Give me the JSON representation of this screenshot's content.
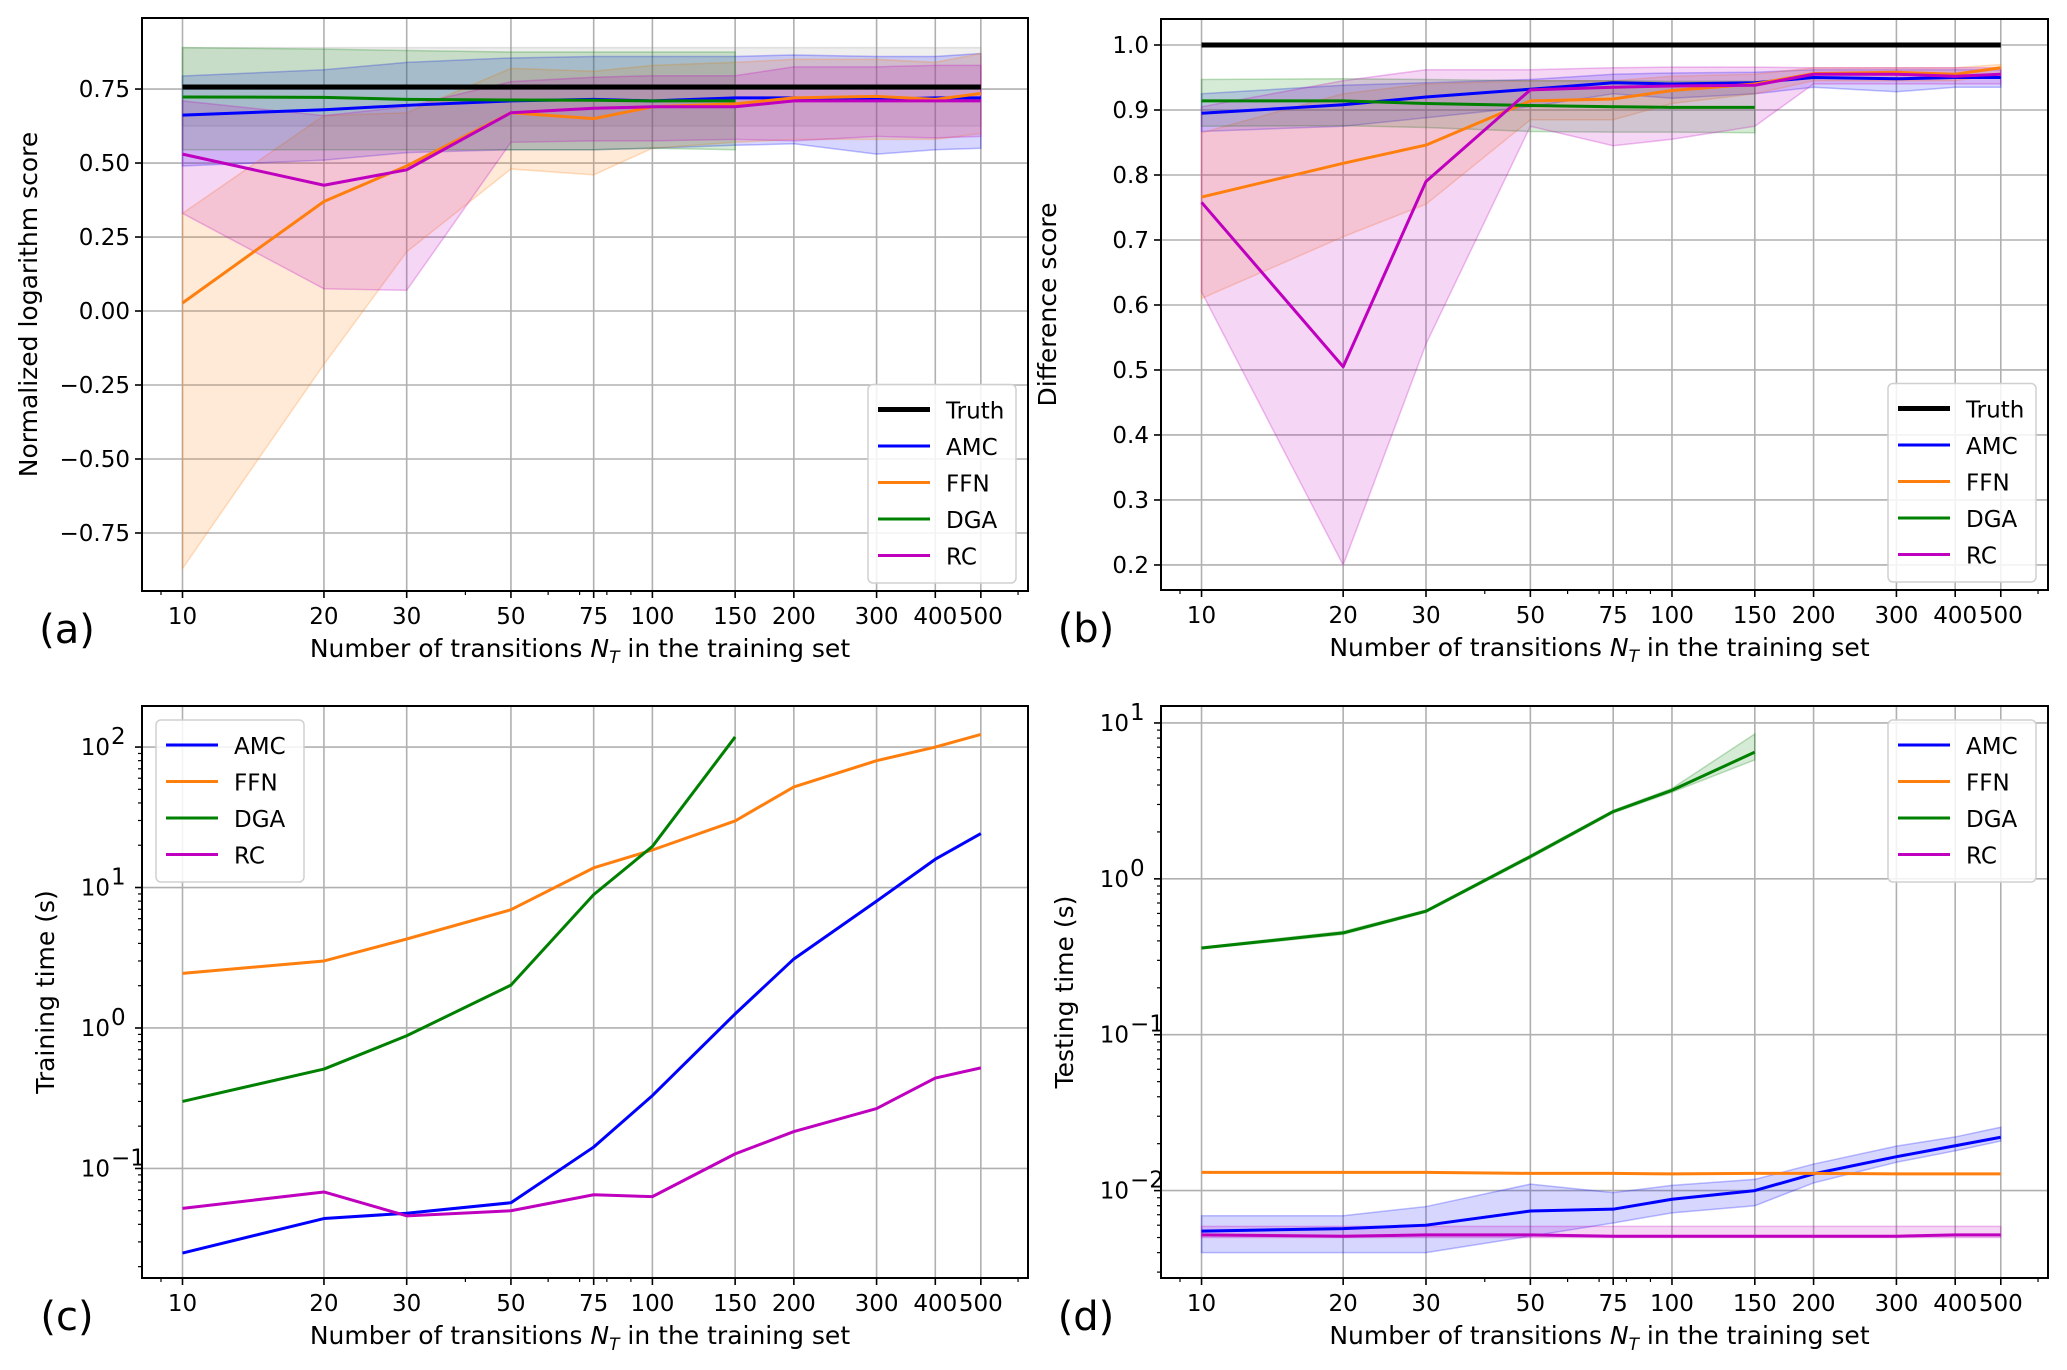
{
  "chart_data": [
    {
      "id": "a",
      "type": "line",
      "panel_label": "(a)",
      "title": "",
      "xlabel": "Number of transitions N_T in the training set",
      "xlabel_parts": [
        "Number of transitions ",
        "N",
        "T",
        " in the training set"
      ],
      "ylabel": "Normalized logarithm score",
      "xscale": "log",
      "yscale": "linear",
      "x": [
        10,
        20,
        30,
        50,
        75,
        100,
        150,
        200,
        300,
        400,
        500
      ],
      "xticks": [
        10,
        20,
        30,
        50,
        75,
        100,
        150,
        200,
        300,
        400,
        500
      ],
      "xtick_labels": [
        "10",
        "20",
        "30",
        "50",
        "75",
        "100",
        "150",
        "200",
        "300",
        "400",
        "500"
      ],
      "xlim": [
        8.2,
        630
      ],
      "ylim": [
        -0.946,
        0.99
      ],
      "yticks": [
        -0.75,
        -0.5,
        -0.25,
        0.0,
        0.25,
        0.5,
        0.75
      ],
      "ytick_labels": [
        "−0.75",
        "−0.50",
        "−0.25",
        "0.00",
        "0.25",
        "0.50",
        "0.75"
      ],
      "grid": true,
      "legend_position": "lower-right",
      "series": [
        {
          "name": "Truth",
          "color": "#000000",
          "width": "thick",
          "values": [
            0.757,
            0.757,
            0.757,
            0.757,
            0.757,
            0.757,
            0.757,
            0.757,
            0.757,
            0.757,
            0.757
          ],
          "band_upper": [
            0.89,
            0.89,
            0.89,
            0.89,
            0.89,
            0.89,
            0.89,
            0.89,
            0.89,
            0.89,
            0.89
          ],
          "band_lower": [
            0.625,
            0.625,
            0.625,
            0.625,
            0.625,
            0.625,
            0.625,
            0.625,
            0.625,
            0.625,
            0.625
          ],
          "band_color": "#999999"
        },
        {
          "name": "AMC",
          "color": "#0000ff",
          "values": [
            0.662,
            0.68,
            0.695,
            0.71,
            0.715,
            0.71,
            0.72,
            0.72,
            0.715,
            0.72,
            0.72
          ],
          "band_upper": [
            0.794,
            0.815,
            0.84,
            0.855,
            0.86,
            0.86,
            0.86,
            0.865,
            0.86,
            0.86,
            0.87
          ],
          "band_lower": [
            0.49,
            0.51,
            0.535,
            0.545,
            0.545,
            0.55,
            0.56,
            0.565,
            0.53,
            0.545,
            0.55
          ],
          "band_color": "#0000ff"
        },
        {
          "name": "FFN",
          "color": "#ff7f0e",
          "values": [
            0.027,
            0.37,
            0.49,
            0.67,
            0.65,
            0.69,
            0.7,
            0.72,
            0.725,
            0.715,
            0.735
          ],
          "band_upper": [
            0.33,
            0.66,
            0.67,
            0.82,
            0.81,
            0.83,
            0.84,
            0.85,
            0.85,
            0.84,
            0.87
          ],
          "band_lower": [
            -0.87,
            -0.18,
            0.2,
            0.48,
            0.46,
            0.55,
            0.57,
            0.58,
            0.58,
            0.58,
            0.6
          ],
          "band_color": "#ff7f0e"
        },
        {
          "name": "DGA",
          "color": "#008000",
          "values": [
            0.723,
            0.722,
            0.715,
            0.713,
            0.712,
            0.71,
            0.71
          ],
          "band_upper": [
            0.89,
            0.885,
            0.88,
            0.875,
            0.875,
            0.875,
            0.875
          ],
          "band_lower": [
            0.545,
            0.545,
            0.545,
            0.545,
            0.545,
            0.55,
            0.545
          ],
          "band_color": "#008000"
        },
        {
          "name": "RC",
          "color": "#bf00bf",
          "values": [
            0.53,
            0.425,
            0.477,
            0.67,
            0.685,
            0.69,
            0.69,
            0.71,
            0.71,
            0.71,
            0.71
          ],
          "band_upper": [
            0.71,
            0.66,
            0.69,
            0.775,
            0.79,
            0.795,
            0.795,
            0.825,
            0.825,
            0.83,
            0.83
          ],
          "band_lower": [
            0.33,
            0.075,
            0.07,
            0.57,
            0.575,
            0.575,
            0.58,
            0.575,
            0.59,
            0.585,
            0.59
          ],
          "band_color": "#bf00bf"
        }
      ]
    },
    {
      "id": "b",
      "type": "line",
      "panel_label": "(b)",
      "title": "",
      "xlabel": "Number of transitions N_T in the training set",
      "xlabel_parts": [
        "Number of transitions ",
        "N",
        "T",
        " in the training set"
      ],
      "ylabel": "Difference score",
      "xscale": "log",
      "yscale": "linear",
      "x": [
        10,
        20,
        30,
        50,
        75,
        100,
        150,
        200,
        300,
        400,
        500
      ],
      "xticks": [
        10,
        20,
        30,
        50,
        75,
        100,
        150,
        200,
        300,
        400,
        500
      ],
      "xtick_labels": [
        "10",
        "20",
        "30",
        "50",
        "75",
        "100",
        "150",
        "200",
        "300",
        "400",
        "500"
      ],
      "xlim": [
        8.2,
        630
      ],
      "ylim": [
        0.1615,
        1.04
      ],
      "yticks": [
        0.2,
        0.3,
        0.4,
        0.5,
        0.6,
        0.7,
        0.8,
        0.9,
        1.0
      ],
      "ytick_labels": [
        "0.2",
        "0.3",
        "0.4",
        "0.5",
        "0.6",
        "0.7",
        "0.8",
        "0.9",
        "1.0"
      ],
      "grid": true,
      "legend_position": "lower-right",
      "series": [
        {
          "name": "Truth",
          "color": "#000000",
          "width": "thick",
          "values": [
            1.0,
            1.0,
            1.0,
            1.0,
            1.0,
            1.0,
            1.0,
            1.0,
            1.0,
            1.0,
            1.0
          ]
        },
        {
          "name": "AMC",
          "color": "#0000ff",
          "values": [
            0.895,
            0.908,
            0.92,
            0.932,
            0.942,
            0.94,
            0.942,
            0.95,
            0.948,
            0.95,
            0.95
          ],
          "band_upper": [
            0.925,
            0.938,
            0.942,
            0.947,
            0.955,
            0.957,
            0.958,
            0.962,
            0.962,
            0.962,
            0.962
          ],
          "band_lower": [
            0.867,
            0.875,
            0.888,
            0.905,
            0.925,
            0.918,
            0.925,
            0.935,
            0.928,
            0.935,
            0.935
          ],
          "band_color": "#0000ff"
        },
        {
          "name": "FFN",
          "color": "#ff7f0e",
          "values": [
            0.766,
            0.818,
            0.846,
            0.914,
            0.917,
            0.93,
            0.94,
            0.956,
            0.958,
            0.955,
            0.965
          ],
          "band_upper": [
            0.865,
            0.925,
            0.94,
            0.945,
            0.945,
            0.952,
            0.955,
            0.965,
            0.965,
            0.965,
            0.97
          ],
          "band_lower": [
            0.61,
            0.705,
            0.755,
            0.885,
            0.885,
            0.91,
            0.925,
            0.945,
            0.945,
            0.945,
            0.955
          ],
          "band_color": "#ff7f0e"
        },
        {
          "name": "DGA",
          "color": "#008000",
          "values": [
            0.914,
            0.914,
            0.91,
            0.907,
            0.905,
            0.904,
            0.904
          ],
          "band_upper": [
            0.947,
            0.948,
            0.947,
            0.945,
            0.945,
            0.944,
            0.944
          ],
          "band_lower": [
            0.875,
            0.876,
            0.873,
            0.867,
            0.866,
            0.866,
            0.865
          ],
          "band_color": "#008000"
        },
        {
          "name": "RC",
          "color": "#bf00bf",
          "values": [
            0.758,
            0.505,
            0.79,
            0.931,
            0.935,
            0.937,
            0.938,
            0.955,
            0.955,
            0.952,
            0.955
          ],
          "band_upper": [
            0.905,
            0.945,
            0.962,
            0.962,
            0.965,
            0.966,
            0.966,
            0.965,
            0.965,
            0.965,
            0.965
          ],
          "band_lower": [
            0.62,
            0.2,
            0.54,
            0.875,
            0.845,
            0.855,
            0.875,
            0.94,
            0.94,
            0.94,
            0.94
          ],
          "band_color": "#bf00bf"
        }
      ]
    },
    {
      "id": "c",
      "type": "line",
      "panel_label": "(c)",
      "title": "",
      "xlabel": "Number of transitions N_T in the training set",
      "xlabel_parts": [
        "Number of transitions ",
        "N",
        "T",
        " in the training set"
      ],
      "ylabel": "Training time (s)",
      "xscale": "log",
      "yscale": "log",
      "x": [
        10,
        20,
        30,
        50,
        75,
        100,
        150,
        200,
        300,
        400,
        500
      ],
      "xticks": [
        10,
        20,
        30,
        50,
        75,
        100,
        150,
        200,
        300,
        400,
        500
      ],
      "xtick_labels": [
        "10",
        "20",
        "30",
        "50",
        "75",
        "100",
        "150",
        "200",
        "300",
        "400",
        "500"
      ],
      "xlim": [
        8.2,
        630
      ],
      "ylim": [
        0.0166,
        196
      ],
      "yticks": [
        0.1,
        1,
        10,
        100
      ],
      "ytick_labels": [
        [
          "10",
          "−1"
        ],
        [
          "10",
          "0"
        ],
        [
          "10",
          "1"
        ],
        [
          "10",
          "2"
        ]
      ],
      "grid": true,
      "legend_position": "upper-left",
      "series": [
        {
          "name": "AMC",
          "color": "#0000ff",
          "values": [
            0.025,
            0.044,
            0.048,
            0.057,
            0.142,
            0.33,
            1.26,
            3.1,
            8.0,
            15.9,
            24.2
          ]
        },
        {
          "name": "FFN",
          "color": "#ff7f0e",
          "values": [
            2.45,
            3.0,
            4.3,
            6.95,
            13.8,
            18.5,
            29.8,
            52,
            80,
            100,
            123
          ]
        },
        {
          "name": "DGA",
          "color": "#008000",
          "values": [
            0.3,
            0.51,
            0.88,
            2.02,
            8.9,
            19.6,
            118
          ]
        },
        {
          "name": "RC",
          "color": "#bf00bf",
          "values": [
            0.052,
            0.068,
            0.046,
            0.05,
            0.065,
            0.063,
            0.127,
            0.183,
            0.267,
            0.44,
            0.52
          ]
        }
      ]
    },
    {
      "id": "d",
      "type": "line",
      "panel_label": "(d)",
      "title": "",
      "xlabel": "Number of transitions N_T in the training set",
      "xlabel_parts": [
        "Number of transitions ",
        "N",
        "T",
        " in the training set"
      ],
      "ylabel": "Testing time (s)",
      "xscale": "log",
      "yscale": "log",
      "x": [
        10,
        20,
        30,
        50,
        75,
        100,
        150,
        200,
        300,
        400,
        500
      ],
      "xticks": [
        10,
        20,
        30,
        50,
        75,
        100,
        150,
        200,
        300,
        400,
        500
      ],
      "xtick_labels": [
        "10",
        "20",
        "30",
        "50",
        "75",
        "100",
        "150",
        "200",
        "300",
        "400",
        "500"
      ],
      "xlim": [
        8.2,
        630
      ],
      "ylim": [
        0.00275,
        12.85
      ],
      "yticks": [
        0.01,
        0.1,
        1,
        10
      ],
      "ytick_labels": [
        [
          "10",
          "−2"
        ],
        [
          "10",
          "−1"
        ],
        [
          "10",
          "0"
        ],
        [
          "10",
          "1"
        ]
      ],
      "grid": true,
      "legend_position": "upper-right",
      "series": [
        {
          "name": "AMC",
          "color": "#0000ff",
          "values": [
            0.0055,
            0.0057,
            0.006,
            0.0074,
            0.0076,
            0.0088,
            0.01,
            0.0128,
            0.0165,
            0.0194,
            0.022
          ],
          "band_upper": [
            0.0069,
            0.0069,
            0.0079,
            0.011,
            0.0097,
            0.0108,
            0.0118,
            0.0148,
            0.0193,
            0.0221,
            0.0255
          ],
          "band_lower": [
            0.004,
            0.004,
            0.004,
            0.0051,
            0.0062,
            0.0072,
            0.008,
            0.0112,
            0.0152,
            0.018,
            0.0208
          ],
          "band_color": "#0000ff"
        },
        {
          "name": "FFN",
          "color": "#ff7f0e",
          "values": [
            0.0131,
            0.0131,
            0.0131,
            0.0129,
            0.0129,
            0.0128,
            0.0129,
            0.0129,
            0.0128,
            0.0128,
            0.0128
          ]
        },
        {
          "name": "DGA",
          "color": "#008000",
          "values": [
            0.36,
            0.45,
            0.62,
            1.39,
            2.7,
            3.7,
            6.5
          ],
          "band_upper": [
            0.365,
            0.46,
            0.63,
            1.42,
            2.75,
            3.8,
            8.5
          ],
          "band_lower": [
            0.355,
            0.44,
            0.61,
            1.36,
            2.65,
            3.6,
            5.8
          ],
          "band_color": "#008000"
        },
        {
          "name": "RC",
          "color": "#bf00bf",
          "values": [
            0.0052,
            0.0051,
            0.0052,
            0.0052,
            0.0051,
            0.0051,
            0.0051,
            0.0051,
            0.0051,
            0.0052,
            0.0052
          ],
          "band_upper": [
            0.0059,
            0.0059,
            0.0059,
            0.0059,
            0.0059,
            0.0059,
            0.0059,
            0.0059,
            0.0059,
            0.0059,
            0.0059
          ],
          "band_lower": [
            0.005,
            0.005,
            0.005,
            0.005,
            0.005,
            0.005,
            0.005,
            0.005,
            0.005,
            0.005,
            0.005
          ],
          "band_color": "#bf00bf"
        }
      ]
    }
  ]
}
